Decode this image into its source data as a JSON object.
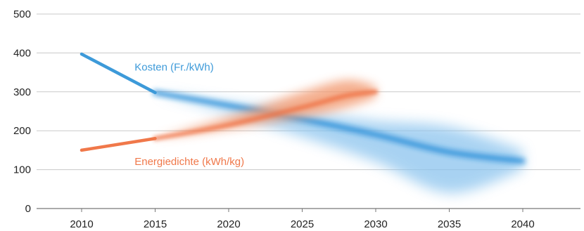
{
  "chart_data": {
    "type": "line",
    "xlim": [
      2010,
      2045
    ],
    "ylim": [
      0,
      500
    ],
    "x_ticks": [
      2010,
      2015,
      2020,
      2025,
      2030,
      2035,
      2040
    ],
    "y_ticks": [
      0,
      100,
      200,
      300,
      400,
      500
    ],
    "grid": true,
    "legend": "inline labels",
    "series": [
      {
        "name": "Kosten (Fr./kWh)",
        "color": "#3d9ad9",
        "x": [
          2010,
          2015
        ],
        "y": [
          397,
          298
        ],
        "projection": {
          "center": [
            [
              2015,
              298
            ],
            [
              2020,
              265
            ],
            [
              2025,
              230
            ],
            [
              2030,
              190
            ],
            [
              2035,
              145
            ],
            [
              2040,
              122
            ]
          ],
          "upper": [
            [
              2015,
              298
            ],
            [
              2020,
              272
            ],
            [
              2025,
              250
            ],
            [
              2030,
              225
            ],
            [
              2035,
              210
            ],
            [
              2040,
              150
            ]
          ],
          "lower": [
            [
              2015,
              298
            ],
            [
              2020,
              245
            ],
            [
              2025,
              185
            ],
            [
              2030,
              120
            ],
            [
              2035,
              40
            ],
            [
              2040,
              100
            ]
          ]
        }
      },
      {
        "name": "Energiedichte (kWh/kg)",
        "color": "#f0784a",
        "x": [
          2010,
          2015
        ],
        "y": [
          150,
          180
        ],
        "projection": {
          "center": [
            [
              2015,
              180
            ],
            [
              2020,
              215
            ],
            [
              2025,
              260
            ],
            [
              2028,
              290
            ],
            [
              2030,
              300
            ]
          ],
          "upper": [
            [
              2015,
              180
            ],
            [
              2020,
              235
            ],
            [
              2025,
              300
            ],
            [
              2028,
              330
            ],
            [
              2030,
              315
            ]
          ],
          "lower": [
            [
              2015,
              180
            ],
            [
              2020,
              205
            ],
            [
              2025,
              235
            ],
            [
              2028,
              260
            ],
            [
              2030,
              285
            ]
          ]
        }
      }
    ]
  }
}
